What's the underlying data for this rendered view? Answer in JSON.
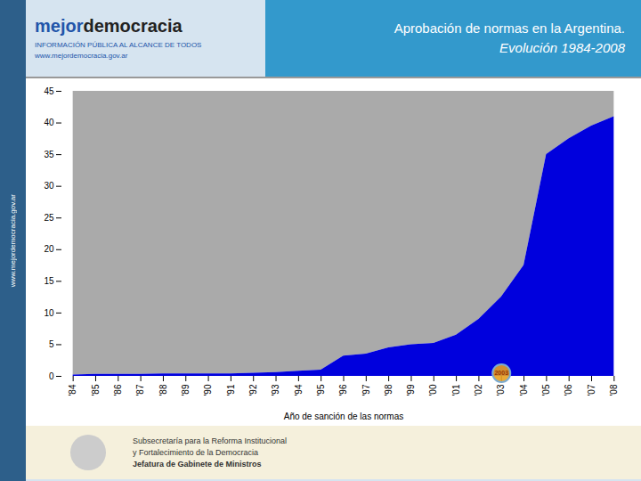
{
  "chart_data": {
    "type": "area",
    "title": "Aprobación de normas en la Argentina.",
    "subtitle": "Evolución 1984-2008",
    "xlabel": "Año de sanción de las normas",
    "x": [
      1984,
      1985,
      1986,
      1987,
      1988,
      1989,
      1990,
      1991,
      1992,
      1993,
      1994,
      1995,
      1996,
      1997,
      1998,
      1999,
      2000,
      2001,
      2002,
      2003,
      2004,
      2005,
      2006,
      2007,
      2008
    ],
    "values": [
      0.2,
      0.3,
      0.3,
      0.3,
      0.4,
      0.4,
      0.4,
      0.4,
      0.5,
      0.6,
      0.8,
      1.0,
      3.2,
      3.5,
      4.5,
      5.0,
      5.2,
      6.5,
      9.0,
      12.5,
      17.5,
      35.0,
      37.5,
      39.5,
      41.0
    ],
    "color": "#0000DD",
    "fill_top": 45,
    "fill_top_color": "#AAAAAA",
    "xlim": [
      1983.5,
      2008.5
    ],
    "xticks": [
      {
        "value": 1984,
        "label": "'84"
      },
      {
        "value": 1985,
        "label": "'85"
      },
      {
        "value": 1986,
        "label": "'86"
      },
      {
        "value": 1987,
        "label": "'87"
      },
      {
        "value": 1988,
        "label": "'88"
      },
      {
        "value": 1989,
        "label": "'89"
      },
      {
        "value": 1990,
        "label": "'90"
      },
      {
        "value": 1991,
        "label": "'91"
      },
      {
        "value": 1992,
        "label": "'92"
      },
      {
        "value": 1993,
        "label": "'93"
      },
      {
        "value": 1994,
        "label": "'94"
      },
      {
        "value": 1995,
        "label": "'95"
      },
      {
        "value": 1996,
        "label": "'96"
      },
      {
        "value": 1997,
        "label": "'97"
      },
      {
        "value": 1998,
        "label": "'98"
      },
      {
        "value": 1999,
        "label": "'99"
      },
      {
        "value": 2000,
        "label": "'00"
      },
      {
        "value": 2001,
        "label": "'01"
      },
      {
        "value": 2002,
        "label": "'02"
      },
      {
        "value": 2003,
        "label": "'03"
      },
      {
        "value": 2004,
        "label": "'04"
      },
      {
        "value": 2005,
        "label": "'05"
      },
      {
        "value": 2006,
        "label": "'06"
      },
      {
        "value": 2007,
        "label": "'07"
      },
      {
        "value": 2008,
        "label": "'08"
      }
    ],
    "ylim": [
      0,
      45
    ],
    "yticks": [
      0,
      5,
      10,
      15,
      20,
      25,
      30,
      35,
      40,
      45
    ],
    "grid": false,
    "annotations": [
      {
        "text": "2003",
        "x": 2003,
        "y": 0.5,
        "color": "#E8A020",
        "edge_color": "#7AAAD0",
        "text_color": "#993300"
      }
    ]
  },
  "page": {
    "sidebar_text": "www.mejordemocracia.gov.ar",
    "sidebar_color": "#2D5F8A",
    "logo": [
      {
        "text": "mejor",
        "color": "#2255AA"
      },
      {
        "text": "democracia",
        "color": "#222222"
      }
    ],
    "logo_lines": [
      "INFORMACIÓN PÚBLICA AL ALCANCE DE TODOS",
      "www.mejordemocracia.gov.ar"
    ],
    "logo_lines_color": "#2255AA",
    "background": "#D6E4F0",
    "header_right_color": "#3399CC",
    "header_text_color": "#FFFFFF",
    "separator_color": "#999999",
    "footer_color": "#F5F0DC",
    "footer_mark_color": "#CCCCCC",
    "footer_lines": [
      "Subsecretaría para la Reforma Institucional",
      "y Fortalecimiento de la Democracia"
    ],
    "footer_bold_line": "Jefatura de Gabinete de Ministros"
  }
}
